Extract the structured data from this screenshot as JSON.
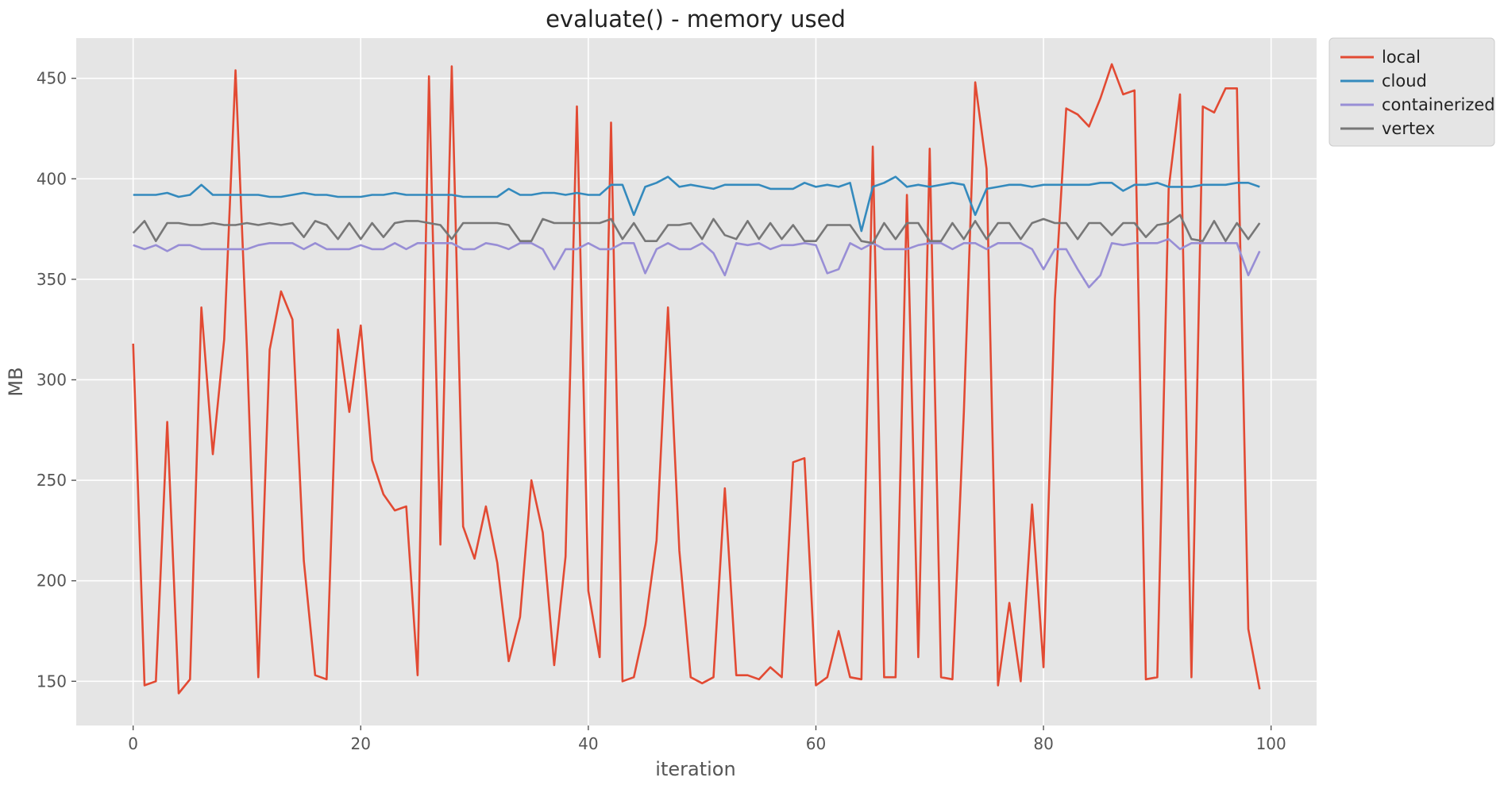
{
  "chart_data": {
    "type": "line",
    "title": "evaluate() - memory used",
    "xlabel": "iteration",
    "ylabel": "MB",
    "xlim": [
      -5,
      104
    ],
    "ylim": [
      128,
      470
    ],
    "xticks": [
      0,
      20,
      40,
      60,
      80,
      100
    ],
    "yticks": [
      150,
      200,
      250,
      300,
      350,
      400,
      450
    ],
    "grid": true,
    "legend_position": "outside top-right",
    "style": {
      "plot_background": "#e5e5e5",
      "grid_color": "#ffffff"
    },
    "series": [
      {
        "name": "local",
        "color": "#e24a33",
        "y": [
          318,
          148,
          150,
          279,
          144,
          151,
          336,
          263,
          320,
          454,
          315,
          152,
          315,
          344,
          330,
          210,
          153,
          151,
          325,
          284,
          327,
          260,
          243,
          235,
          237,
          153,
          451,
          218,
          456,
          227,
          211,
          237,
          209,
          160,
          182,
          250,
          224,
          158,
          212,
          436,
          195,
          162,
          428,
          150,
          152,
          178,
          220,
          336,
          215,
          152,
          149,
          152,
          246,
          153,
          153,
          151,
          157,
          152,
          259,
          261,
          148,
          152,
          175,
          152,
          151,
          416,
          152,
          152,
          392,
          162,
          415,
          152,
          151,
          284,
          448,
          405,
          148,
          189,
          150,
          238,
          157,
          340,
          435,
          432,
          426,
          440,
          457,
          442,
          444,
          151,
          152,
          395,
          442,
          152,
          436,
          433,
          445,
          445,
          176,
          146
        ]
      },
      {
        "name": "cloud",
        "color": "#348abd",
        "y": [
          392,
          392,
          392,
          393,
          391,
          392,
          397,
          392,
          392,
          392,
          392,
          392,
          391,
          391,
          392,
          393,
          392,
          392,
          391,
          391,
          391,
          392,
          392,
          393,
          392,
          392,
          392,
          392,
          392,
          391,
          391,
          391,
          391,
          395,
          392,
          392,
          393,
          393,
          392,
          393,
          392,
          392,
          397,
          397,
          382,
          396,
          398,
          401,
          396,
          397,
          396,
          395,
          397,
          397,
          397,
          397,
          395,
          395,
          395,
          398,
          396,
          397,
          396,
          398,
          374,
          396,
          398,
          401,
          396,
          397,
          396,
          397,
          398,
          397,
          382,
          395,
          396,
          397,
          397,
          396,
          397,
          397,
          397,
          397,
          397,
          398,
          398,
          394,
          397,
          397,
          398,
          396,
          396,
          396,
          397,
          397,
          397,
          398,
          398,
          396
        ]
      },
      {
        "name": "containerized",
        "color": "#988ed5",
        "y": [
          367,
          365,
          367,
          364,
          367,
          367,
          365,
          365,
          365,
          365,
          365,
          367,
          368,
          368,
          368,
          365,
          368,
          365,
          365,
          365,
          367,
          365,
          365,
          368,
          365,
          368,
          368,
          368,
          368,
          365,
          365,
          368,
          367,
          365,
          368,
          368,
          365,
          355,
          365,
          365,
          368,
          365,
          365,
          368,
          368,
          353,
          365,
          368,
          365,
          365,
          368,
          363,
          352,
          368,
          367,
          368,
          365,
          367,
          367,
          368,
          367,
          353,
          355,
          368,
          365,
          368,
          365,
          365,
          365,
          367,
          368,
          368,
          365,
          368,
          368,
          365,
          368,
          368,
          368,
          365,
          355,
          365,
          365,
          355,
          346,
          352,
          368,
          367,
          368,
          368,
          368,
          370,
          365,
          368,
          368,
          368,
          368,
          368,
          352,
          364
        ]
      },
      {
        "name": "vertex",
        "color": "#777777",
        "y": [
          373,
          379,
          369,
          378,
          378,
          377,
          377,
          378,
          377,
          377,
          378,
          377,
          378,
          377,
          378,
          371,
          379,
          377,
          370,
          378,
          370,
          378,
          371,
          378,
          379,
          379,
          378,
          377,
          370,
          378,
          378,
          378,
          378,
          377,
          369,
          369,
          380,
          378,
          378,
          378,
          378,
          378,
          380,
          370,
          378,
          369,
          369,
          377,
          377,
          378,
          370,
          380,
          372,
          370,
          379,
          370,
          378,
          370,
          377,
          369,
          369,
          377,
          377,
          377,
          369,
          368,
          378,
          370,
          378,
          378,
          369,
          369,
          378,
          370,
          379,
          370,
          378,
          378,
          370,
          378,
          380,
          378,
          378,
          370,
          378,
          378,
          372,
          378,
          378,
          371,
          377,
          378,
          382,
          370,
          369,
          379,
          369,
          378,
          370,
          378
        ]
      }
    ]
  }
}
